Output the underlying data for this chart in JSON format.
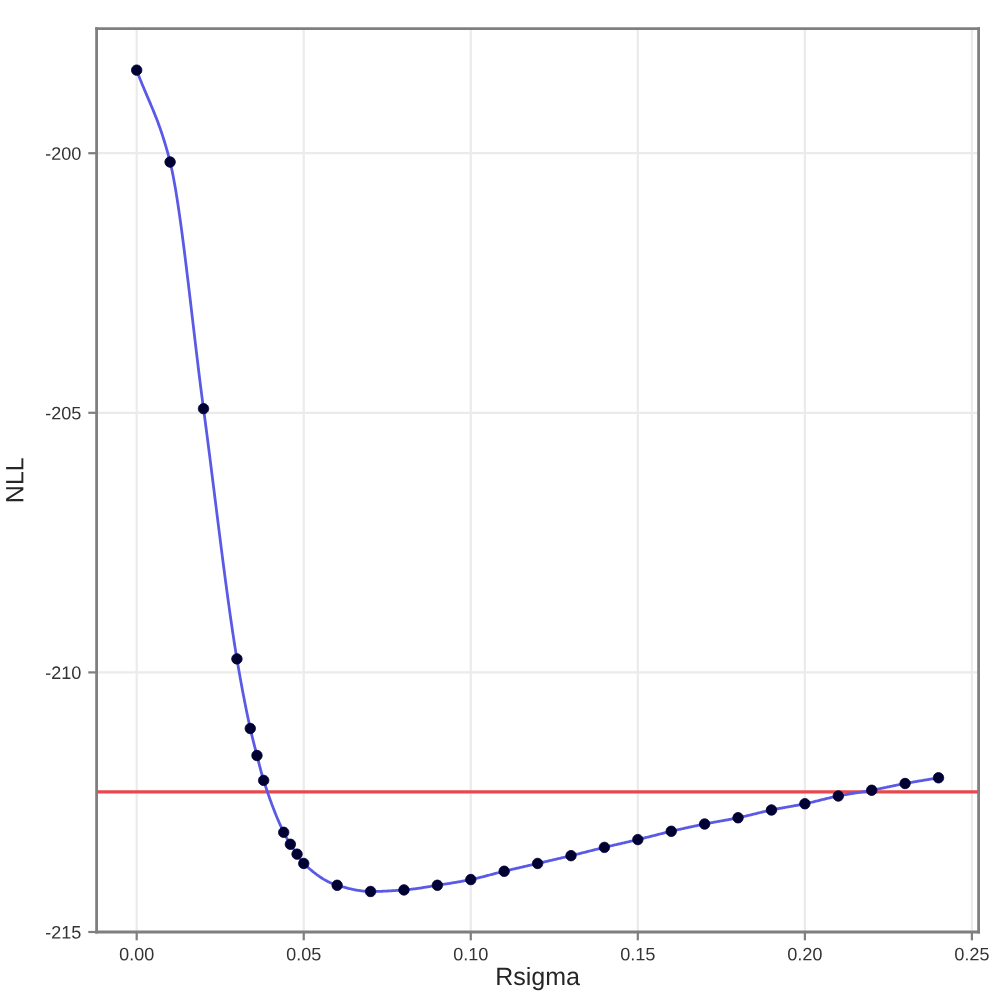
{
  "chart_data": {
    "type": "scatter",
    "xlabel": "Rsigma",
    "ylabel": "NLL",
    "xlim": [
      -0.012,
      0.252
    ],
    "ylim": [
      -215,
      -197.6
    ],
    "xticks": [
      {
        "value": 0,
        "label": "0.00"
      },
      {
        "value": 0.05,
        "label": "0.05"
      },
      {
        "value": 0.1,
        "label": "0.10"
      },
      {
        "value": 0.15,
        "label": "0.15"
      },
      {
        "value": 0.2,
        "label": "0.20"
      },
      {
        "value": 0.25,
        "label": "0.25"
      }
    ],
    "yticks": [
      -215,
      -210,
      -205,
      -200
    ],
    "grid": true,
    "x": [
      0,
      0.01,
      0.02,
      0.03,
      0.034,
      0.036,
      0.038,
      0.044,
      0.046,
      0.048,
      0.05,
      0.06,
      0.07,
      0.08,
      0.09,
      0.1,
      0.11,
      0.12,
      0.13,
      0.14,
      0.15,
      0.16,
      0.17,
      0.18,
      0.19,
      0.2,
      0.21,
      0.22,
      0.23,
      0.24
    ],
    "series": [
      {
        "type": "line",
        "color": "#5a5ae6",
        "line_style": "solid",
        "values": [
          -198.4,
          -200.17,
          -204.92,
          -209.74,
          -211.08,
          -211.6,
          -212.08,
          -213.08,
          -213.31,
          -213.5,
          -213.68,
          -214.1,
          -214.22,
          -214.19,
          -214.1,
          -213.99,
          -213.83,
          -213.68,
          -213.53,
          -213.37,
          -213.22,
          -213.06,
          -212.92,
          -212.8,
          -212.65,
          -212.53,
          -212.38,
          -212.27,
          -212.14,
          -212.03
        ]
      },
      {
        "color": "#000033",
        "marker": "circle",
        "values": [
          -198.4,
          -200.17,
          -204.92,
          -209.74,
          -211.08,
          -211.6,
          -212.08,
          -213.08,
          -213.31,
          -213.5,
          -213.68,
          -214.1,
          -214.22,
          -214.19,
          -214.1,
          -213.99,
          -213.83,
          -213.68,
          -213.53,
          -213.37,
          -213.22,
          -213.06,
          -212.92,
          -212.8,
          -212.65,
          -212.53,
          -212.38,
          -212.27,
          -212.14,
          -212.03
        ]
      }
    ],
    "ref_lines": [
      {
        "axis": "y",
        "value": -212.3,
        "color": "#e8474b",
        "line_style": "solid"
      }
    ]
  }
}
